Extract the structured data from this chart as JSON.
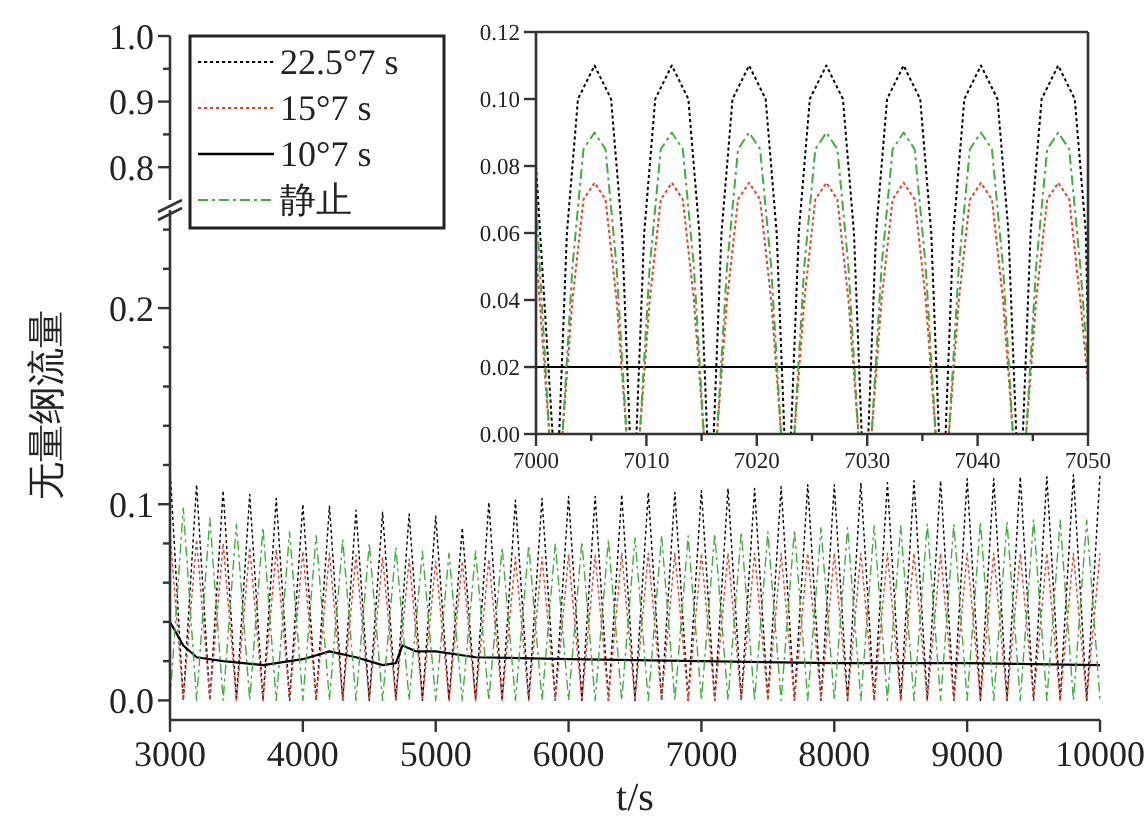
{
  "chart_data": [
    {
      "type": "line",
      "xlim": [
        3000,
        10000
      ],
      "ylim": [
        -0.01,
        0.25
      ],
      "xlabel": "t/s",
      "ylabel": "无量纲流量",
      "legend": "top left",
      "xticks": [
        3000,
        4000,
        5000,
        6000,
        7000,
        8000,
        9000,
        10000
      ],
      "yticks": [
        {
          "value": 0,
          "label": "0.0"
        },
        {
          "value": 0.02,
          "label": null
        },
        {
          "value": 0.04,
          "label": null
        },
        {
          "value": 0.06,
          "label": null
        },
        {
          "value": 0.08,
          "label": null
        },
        0.1,
        {
          "value": 0.12,
          "label": null
        },
        {
          "value": 0.14,
          "label": null
        },
        {
          "value": 0.16,
          "label": null
        },
        {
          "value": 0.18,
          "label": null
        },
        0.2,
        {
          "value": 0.22,
          "label": null
        },
        {
          "value": 0.24,
          "label": null
        }
      ],
      "x": [
        3000,
        3100,
        3200,
        3300,
        3400,
        3500,
        3600,
        3700,
        3800,
        3900,
        4000,
        4100,
        4200,
        4300,
        4400,
        4500,
        4600,
        4700,
        4800,
        4900,
        5000,
        5100,
        5200,
        5300,
        5400,
        5500,
        5600,
        5700,
        5800,
        5900,
        6000,
        6100,
        6200,
        6300,
        6400,
        6500,
        6600,
        6700,
        6800,
        6900,
        7000,
        7100,
        7200,
        7300,
        7400,
        7500,
        7600,
        7700,
        7800,
        7900,
        8000,
        8100,
        8200,
        8300,
        8400,
        8500,
        8600,
        8700,
        8800,
        8900,
        9000,
        9100,
        9200,
        9300,
        9400,
        9500,
        9600,
        9700,
        9800,
        9900,
        10000
      ],
      "series": [
        {
          "name": "22.5°7 s",
          "color": "#000000",
          "line_style": "dotted",
          "values": [
            0.118,
            0,
            0.11,
            0,
            0.107,
            0,
            0.105,
            0,
            0.103,
            0,
            0.1,
            0,
            0.099,
            0,
            0.097,
            0,
            0.096,
            0,
            0.095,
            0,
            0.094,
            0,
            0.088,
            0,
            0.101,
            0,
            0.102,
            0,
            0.103,
            0,
            0.104,
            0,
            0.104,
            0,
            0.105,
            0,
            0.106,
            0,
            0.106,
            0,
            0.107,
            0,
            0.108,
            0,
            0.108,
            0,
            0.109,
            0,
            0.11,
            0,
            0.11,
            0,
            0.111,
            0,
            0.111,
            0,
            0.112,
            0,
            0.112,
            0,
            0.113,
            0,
            0.113,
            0,
            0.114,
            0,
            0.114,
            0,
            0.115,
            0,
            0.115
          ]
        },
        {
          "name": "15°7 s",
          "color": "#e8402a",
          "line_style": "dotted",
          "values": [
            0.085,
            0,
            0.082,
            0,
            0.08,
            0,
            0.078,
            0,
            0.077,
            0,
            0.076,
            0,
            0.075,
            0,
            0.074,
            0,
            0.073,
            0,
            0.072,
            0,
            0.071,
            0,
            0.071,
            0,
            0.072,
            0,
            0.073,
            0,
            0.073,
            0,
            0.074,
            0,
            0.074,
            0,
            0.075,
            0,
            0.075,
            0,
            0.075,
            0,
            0.075,
            0,
            0.075,
            0,
            0.075,
            0,
            0.075,
            0,
            0.075,
            0,
            0.075,
            0,
            0.075,
            0,
            0.075,
            0,
            0.075,
            0,
            0.075,
            0,
            0.075,
            0,
            0.075,
            0,
            0.075,
            0,
            0.075,
            0,
            0.075,
            0,
            0.075
          ]
        },
        {
          "name": "10°7 s",
          "color": "#000000",
          "line_style": "solid",
          "x": [
            3000,
            3100,
            3200,
            3400,
            3700,
            4000,
            4200,
            4400,
            4600,
            4700,
            4750,
            4850,
            5000,
            5300,
            6000,
            7000,
            8000,
            9000,
            10000
          ],
          "values": [
            0.04,
            0.028,
            0.022,
            0.02,
            0.018,
            0.021,
            0.025,
            0.022,
            0.018,
            0.019,
            0.028,
            0.025,
            0.025,
            0.022,
            0.021,
            0.02,
            0.019,
            0.019,
            0.018
          ]
        },
        {
          "name": "静止",
          "color": "#3fae3a",
          "line_style": "dashed",
          "values": [
            0,
            0.098,
            0,
            0.093,
            0,
            0.09,
            0,
            0.088,
            0,
            0.086,
            0,
            0.084,
            0,
            0.082,
            0,
            0.08,
            0,
            0.078,
            0,
            0.076,
            0,
            0.075,
            0,
            0.076,
            0,
            0.078,
            0,
            0.079,
            0,
            0.08,
            0,
            0.081,
            0,
            0.082,
            0,
            0.083,
            0,
            0.084,
            0,
            0.084,
            0,
            0.085,
            0,
            0.086,
            0,
            0.086,
            0,
            0.087,
            0,
            0.088,
            0,
            0.088,
            0,
            0.089,
            0,
            0.089,
            0,
            0.09,
            0,
            0.09,
            0,
            0.091,
            0,
            0.091,
            0,
            0.092,
            0,
            0.092,
            0,
            0.092,
            0
          ]
        }
      ]
    },
    {
      "type": "line",
      "xlim": [
        3000,
        10000
      ],
      "ylim": [
        0.75,
        1.0
      ],
      "tick_labels": "y",
      "yticks": [
        {
          "value": 0.8,
          "label": "0.8"
        },
        {
          "value": 0.85,
          "label": null
        },
        {
          "value": 0.9,
          "label": "0.9"
        },
        {
          "value": 0.95,
          "label": null
        },
        {
          "value": 1.0,
          "label": "1.0"
        }
      ]
    },
    {
      "type": "line",
      "xlim": [
        7000,
        7050
      ],
      "ylim": [
        0,
        0.12
      ],
      "xticks": [
        7000,
        {
          "value": 7005,
          "label": null
        },
        7010,
        {
          "value": 7015,
          "label": null
        },
        7020,
        {
          "value": 7025,
          "label": null
        },
        7030,
        {
          "value": 7035,
          "label": null
        },
        7040,
        {
          "value": 7045,
          "label": null
        },
        7050
      ],
      "yticks": [
        {
          "value": 0,
          "label": "0.00"
        },
        {
          "value": 0.02,
          "label": "0.02"
        },
        {
          "value": 0.04,
          "label": "0.04"
        },
        {
          "value": 0.06,
          "label": "0.06"
        },
        {
          "value": 0.08,
          "label": "0.08"
        },
        {
          "value": 0.1,
          "label": "0.10"
        },
        {
          "value": 0.12,
          "label": "0.12"
        }
      ],
      "series": [
        {
          "color": "#000000",
          "line_style": "dotted",
          "x": [
            7000,
            7001.5,
            7002.1,
            7002.8,
            7003.8,
            7005.3,
            7006.8,
            7007.8,
            7008.5,
            7009.1,
            7009.8,
            7010.8,
            7012.3,
            7013.8,
            7014.8,
            7015.5,
            7016.1,
            7016.8,
            7017.8,
            7019.3,
            7020.8,
            7021.8,
            7022.5,
            7023.1,
            7023.8,
            7024.8,
            7026.3,
            7027.8,
            7028.8,
            7029.5,
            7030.1,
            7030.8,
            7031.8,
            7033.3,
            7034.8,
            7035.8,
            7036.5,
            7037.1,
            7037.8,
            7038.8,
            7040.3,
            7041.8,
            7042.8,
            7043.5,
            7044.1,
            7044.8,
            7045.8,
            7047.3,
            7048.8,
            7049.8,
            7050
          ],
          "values": [
            0.08,
            0,
            0,
            0.06,
            0.1,
            0.11,
            0.1,
            0.06,
            0,
            0,
            0.06,
            0.1,
            0.11,
            0.1,
            0.06,
            0,
            0,
            0.06,
            0.1,
            0.11,
            0.1,
            0.06,
            0,
            0,
            0.06,
            0.1,
            0.11,
            0.1,
            0.06,
            0,
            0,
            0.06,
            0.1,
            0.11,
            0.1,
            0.06,
            0,
            0,
            0.06,
            0.1,
            0.11,
            0.1,
            0.06,
            0,
            0,
            0.06,
            0.1,
            0.11,
            0.1,
            0.06,
            0.03
          ]
        },
        {
          "color": "#e8402a",
          "line_style": "dotted",
          "x": [
            7000,
            7001.2,
            7002.4,
            7003.3,
            7004.3,
            7005.3,
            7006.3,
            7007.3,
            7008.2,
            7009.4,
            7010.3,
            7011.3,
            7012.3,
            7013.3,
            7014.3,
            7015.2,
            7016.4,
            7017.3,
            7018.3,
            7019.3,
            7020.3,
            7021.3,
            7022.2,
            7023.4,
            7024.3,
            7025.3,
            7026.3,
            7027.3,
            7028.3,
            7029.2,
            7030.4,
            7031.3,
            7032.3,
            7033.3,
            7034.3,
            7035.3,
            7036.2,
            7037.4,
            7038.3,
            7039.3,
            7040.3,
            7041.3,
            7042.3,
            7043.2,
            7044.4,
            7045.3,
            7046.3,
            7047.3,
            7048.3,
            7049.3,
            7050
          ],
          "values": [
            0.055,
            0,
            0,
            0.04,
            0.07,
            0.075,
            0.07,
            0.04,
            0,
            0,
            0.04,
            0.07,
            0.075,
            0.07,
            0.04,
            0,
            0,
            0.04,
            0.07,
            0.075,
            0.07,
            0.04,
            0,
            0,
            0.04,
            0.07,
            0.075,
            0.07,
            0.04,
            0,
            0,
            0.04,
            0.07,
            0.075,
            0.07,
            0.04,
            0,
            0,
            0.04,
            0.07,
            0.075,
            0.07,
            0.04,
            0,
            0,
            0.04,
            0.07,
            0.075,
            0.07,
            0.04,
            0.015
          ]
        },
        {
          "color": "#000000",
          "line_style": "solid",
          "x": [
            7000,
            7050
          ],
          "values": [
            0.02,
            0.02
          ]
        },
        {
          "color": "#3fae3a",
          "line_style": "dashed",
          "x": [
            7000,
            7001.2,
            7002.4,
            7003.3,
            7004.3,
            7005.3,
            7006.3,
            7007.3,
            7008.2,
            7009.4,
            7010.3,
            7011.3,
            7012.3,
            7013.3,
            7014.3,
            7015.2,
            7016.4,
            7017.3,
            7018.3,
            7019.3,
            7020.3,
            7021.3,
            7022.2,
            7023.4,
            7024.3,
            7025.3,
            7026.3,
            7027.3,
            7028.3,
            7029.2,
            7030.4,
            7031.3,
            7032.3,
            7033.3,
            7034.3,
            7035.3,
            7036.2,
            7037.4,
            7038.3,
            7039.3,
            7040.3,
            7041.3,
            7042.3,
            7043.2,
            7044.4,
            7045.3,
            7046.3,
            7047.3,
            7048.3,
            7049.3,
            7050
          ],
          "values": [
            0.07,
            0,
            0,
            0.05,
            0.085,
            0.09,
            0.085,
            0.05,
            0,
            0,
            0.05,
            0.085,
            0.09,
            0.085,
            0.05,
            0,
            0,
            0.05,
            0.085,
            0.09,
            0.085,
            0.05,
            0,
            0,
            0.05,
            0.085,
            0.09,
            0.085,
            0.05,
            0,
            0,
            0.05,
            0.085,
            0.09,
            0.085,
            0.05,
            0,
            0,
            0.05,
            0.085,
            0.09,
            0.085,
            0.05,
            0,
            0,
            0.05,
            0.085,
            0.09,
            0.085,
            0.05,
            0.02
          ]
        }
      ]
    }
  ]
}
